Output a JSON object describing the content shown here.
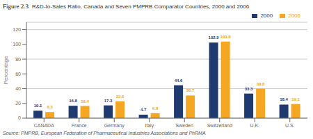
{
  "chart_data": {
    "type": "bar",
    "title": "R&D-to-Sales Ratio, Canada and Seven PMPRB Comparator Countries, 2000 and 2006",
    "annotations": [
      "Figure 2.3",
      "Source: PMPRB, European Federation of Pharmaceutical Industries Associations and PhRMA"
    ],
    "ylabel": "Percentage",
    "categories": [
      "CANADA",
      "France",
      "Germany",
      "Italy",
      "Sweden",
      "Switzerland",
      "U.K.",
      "U.S."
    ],
    "series": [
      {
        "name": "2000",
        "color": "#1F3A6E",
        "values": [
          10.1,
          16.8,
          17.3,
          4.7,
          44.6,
          102.5,
          33.3,
          18.4
        ]
      },
      {
        "name": "2006",
        "color": "#F5A623",
        "values": [
          8.3,
          16.4,
          22.9,
          6.8,
          30.7,
          103.8,
          39.8,
          19.1
        ]
      }
    ],
    "ylim": [
      0,
      130
    ],
    "yticks": [
      0,
      20,
      40,
      60,
      80,
      100,
      120
    ],
    "grid": true,
    "legend": "upper right",
    "data_labels": true
  }
}
